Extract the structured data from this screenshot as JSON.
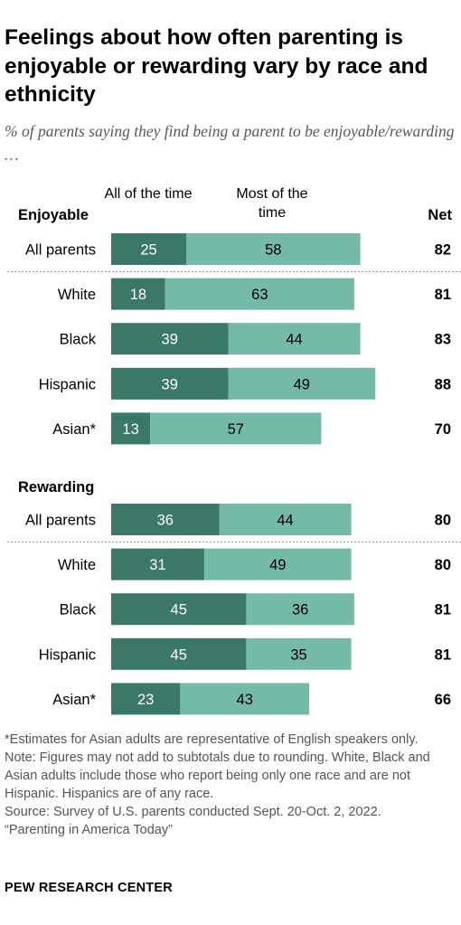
{
  "title": "Feelings about how often parenting is enjoyable or rewarding vary by race and ethnicity",
  "subtitle": "% of parents saying they find being a parent to be enjoyable/rewarding …",
  "column_headers": {
    "all_of_the_time": "All of the time",
    "most_of_the_time": "Most of the time",
    "net": "Net"
  },
  "notes": [
    "*Estimates for Asian adults are representative of English speakers only.",
    "Note: Figures may not add to subtotals due to rounding. White, Black and Asian adults include those who report being only one race and are not Hispanic. Hispanics are of any race.",
    "Source: Survey of U.S. parents conducted Sept. 20-Oct. 2, 2022.",
    "“Parenting in America Today”"
  ],
  "brand": "PEW RESEARCH CENTER",
  "colors": {
    "all_of_the_time": "#3a7868",
    "most_of_the_time": "#74baa6",
    "divider": "#999999"
  },
  "chart_data": {
    "type": "bar",
    "orientation": "horizontal",
    "stacked": true,
    "series_names": [
      "All of the time",
      "Most of the time"
    ],
    "panels": [
      {
        "heading": "Enjoyable",
        "rows": [
          {
            "label": "All parents",
            "all_of_the_time": 25,
            "most_of_the_time": 58,
            "net": 82
          },
          {
            "label": "White",
            "all_of_the_time": 18,
            "most_of_the_time": 63,
            "net": 81
          },
          {
            "label": "Black",
            "all_of_the_time": 39,
            "most_of_the_time": 44,
            "net": 83
          },
          {
            "label": "Hispanic",
            "all_of_the_time": 39,
            "most_of_the_time": 49,
            "net": 88
          },
          {
            "label": "Asian*",
            "all_of_the_time": 13,
            "most_of_the_time": 57,
            "net": 70
          }
        ]
      },
      {
        "heading": "Rewarding",
        "rows": [
          {
            "label": "All parents",
            "all_of_the_time": 36,
            "most_of_the_time": 44,
            "net": 80
          },
          {
            "label": "White",
            "all_of_the_time": 31,
            "most_of_the_time": 49,
            "net": 80
          },
          {
            "label": "Black",
            "all_of_the_time": 45,
            "most_of_the_time": 36,
            "net": 81
          },
          {
            "label": "Hispanic",
            "all_of_the_time": 45,
            "most_of_the_time": 35,
            "net": 81
          },
          {
            "label": "Asian*",
            "all_of_the_time": 23,
            "most_of_the_time": 43,
            "net": 66
          }
        ]
      }
    ]
  }
}
